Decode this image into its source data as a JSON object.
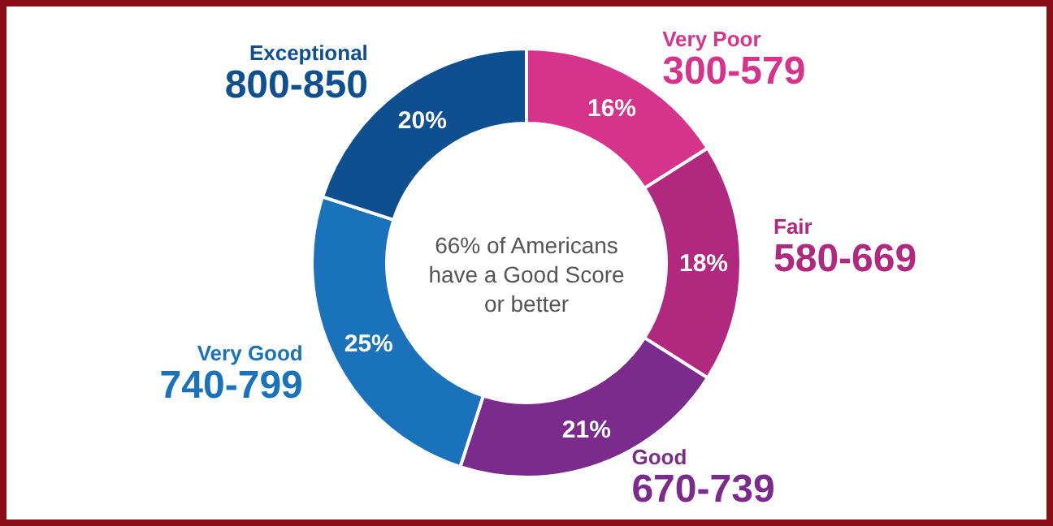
{
  "chart_data": {
    "type": "donut",
    "categories": [
      "Very Poor\n300-579",
      "Fair\n580-669",
      "Good\n670-739",
      "Very Good\n740-799",
      "Exceptional\n800-850"
    ],
    "values": [
      16,
      18,
      21,
      25,
      20
    ],
    "value_labels": [
      "16%",
      "18%",
      "21%",
      "25%",
      "20%"
    ],
    "colors": [
      "#d6338a",
      "#b1297f",
      "#7a2b8b",
      "#1a72bb",
      "#0e4f90"
    ],
    "annotations": [
      "66% of Americans\nhave a Good Score\nor better"
    ]
  }
}
